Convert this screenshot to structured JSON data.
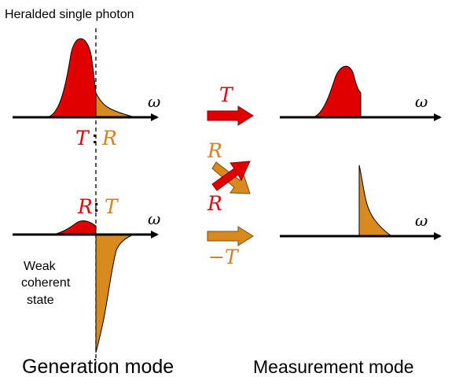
{
  "labels": {
    "title": "Heralded single photon",
    "omega": "ω",
    "ratio_top_T": "T",
    "ratio_top_colon": ":",
    "ratio_top_R": "R",
    "ratio_bot_R": "R",
    "ratio_bot_colon": ":",
    "ratio_bot_T": "T",
    "arrow_T": "T",
    "arrow_R_top": "R",
    "arrow_R_bottom": "R",
    "arrow_minus_T": "−T",
    "weak_coherent": [
      "Weak",
      "coherent",
      "state"
    ],
    "generation_mode": "Generation mode",
    "measurement_mode": "Measurement mode"
  },
  "colors": {
    "red": "#e00000",
    "orange": "#d98a1f",
    "red_text": "#e8000b",
    "orange_text": "#d9801e",
    "axis": "#000000"
  }
}
